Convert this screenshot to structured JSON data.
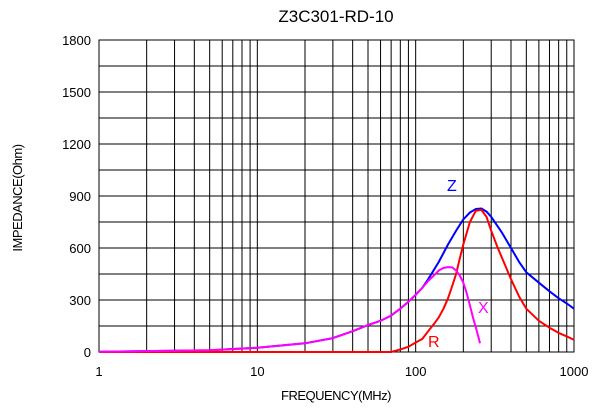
{
  "chart_data": {
    "type": "line",
    "title": "Z3C301-RD-10",
    "xlabel": "FREQUENCY(MHz)",
    "ylabel": "IMPEDANCE(Ohm)",
    "x_scale": "log",
    "xlim": [
      1,
      1000
    ],
    "ylim": [
      0,
      1800
    ],
    "x_ticks": [
      1,
      10,
      100,
      1000
    ],
    "x_tick_labels": [
      "1",
      "10",
      "100",
      "1000"
    ],
    "y_ticks": [
      0,
      300,
      600,
      900,
      1200,
      1500,
      1800
    ],
    "y_tick_labels": [
      "0",
      "300",
      "600",
      "900",
      "1200",
      "1500",
      "1800"
    ],
    "grid": true,
    "series": [
      {
        "name": "Z",
        "color": "#0000ff",
        "points": [
          [
            1,
            2
          ],
          [
            5,
            10
          ],
          [
            10,
            25
          ],
          [
            20,
            50
          ],
          [
            30,
            80
          ],
          [
            40,
            120
          ],
          [
            50,
            155
          ],
          [
            60,
            180
          ],
          [
            70,
            210
          ],
          [
            80,
            250
          ],
          [
            90,
            290
          ],
          [
            100,
            330
          ],
          [
            110,
            370
          ],
          [
            120,
            420
          ],
          [
            140,
            520
          ],
          [
            160,
            620
          ],
          [
            180,
            700
          ],
          [
            200,
            765
          ],
          [
            220,
            805
          ],
          [
            240,
            825
          ],
          [
            260,
            828
          ],
          [
            280,
            810
          ],
          [
            300,
            780
          ],
          [
            350,
            690
          ],
          [
            400,
            600
          ],
          [
            450,
            520
          ],
          [
            500,
            460
          ],
          [
            600,
            400
          ],
          [
            700,
            350
          ],
          [
            800,
            310
          ],
          [
            900,
            280
          ],
          [
            1000,
            250
          ]
        ]
      },
      {
        "name": "R",
        "color": "#ff0000",
        "points": [
          [
            1,
            0
          ],
          [
            5,
            0
          ],
          [
            10,
            0
          ],
          [
            20,
            0
          ],
          [
            40,
            0
          ],
          [
            60,
            0
          ],
          [
            70,
            0
          ],
          [
            80,
            15
          ],
          [
            90,
            30
          ],
          [
            100,
            55
          ],
          [
            110,
            75
          ],
          [
            120,
            120
          ],
          [
            130,
            160
          ],
          [
            140,
            200
          ],
          [
            150,
            250
          ],
          [
            160,
            310
          ],
          [
            170,
            380
          ],
          [
            180,
            450
          ],
          [
            190,
            540
          ],
          [
            200,
            620
          ],
          [
            220,
            750
          ],
          [
            240,
            815
          ],
          [
            260,
            820
          ],
          [
            280,
            780
          ],
          [
            300,
            700
          ],
          [
            330,
            600
          ],
          [
            360,
            520
          ],
          [
            400,
            420
          ],
          [
            450,
            320
          ],
          [
            500,
            250
          ],
          [
            600,
            180
          ],
          [
            700,
            140
          ],
          [
            800,
            110
          ],
          [
            900,
            90
          ],
          [
            1000,
            70
          ]
        ]
      },
      {
        "name": "X",
        "color": "#ff00ff",
        "points": [
          [
            1,
            2
          ],
          [
            5,
            10
          ],
          [
            10,
            25
          ],
          [
            20,
            50
          ],
          [
            30,
            80
          ],
          [
            40,
            120
          ],
          [
            50,
            155
          ],
          [
            60,
            180
          ],
          [
            70,
            210
          ],
          [
            80,
            250
          ],
          [
            90,
            290
          ],
          [
            100,
            330
          ],
          [
            110,
            370
          ],
          [
            120,
            410
          ],
          [
            130,
            440
          ],
          [
            140,
            470
          ],
          [
            150,
            485
          ],
          [
            160,
            490
          ],
          [
            170,
            488
          ],
          [
            180,
            470
          ],
          [
            190,
            440
          ],
          [
            200,
            400
          ],
          [
            210,
            340
          ],
          [
            220,
            270
          ],
          [
            230,
            200
          ],
          [
            240,
            140
          ],
          [
            250,
            80
          ],
          [
            255,
            50
          ]
        ]
      }
    ]
  }
}
